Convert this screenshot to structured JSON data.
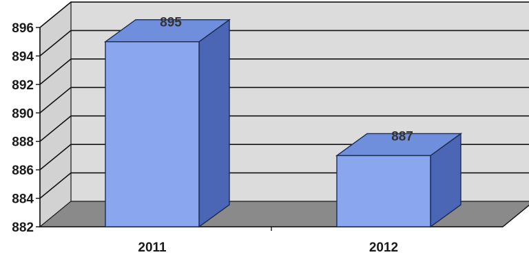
{
  "chart_data": {
    "type": "bar",
    "categories": [
      "2011",
      "2012"
    ],
    "values": [
      895,
      887
    ],
    "data_labels": [
      "895",
      "887"
    ],
    "title": "",
    "xlabel": "",
    "ylabel": "",
    "ylim": [
      882,
      896
    ],
    "yticks": [
      "882",
      "884",
      "886",
      "888",
      "890",
      "892",
      "894",
      "896"
    ],
    "grid": true,
    "three_d": true,
    "colors": {
      "bar_front": "#8aa6ee",
      "bar_top": "#6f8fdc",
      "bar_side": "#4a66b5",
      "wall": "#dcdcdc",
      "floor": "#8a8a8a",
      "grid": "#111111"
    }
  }
}
